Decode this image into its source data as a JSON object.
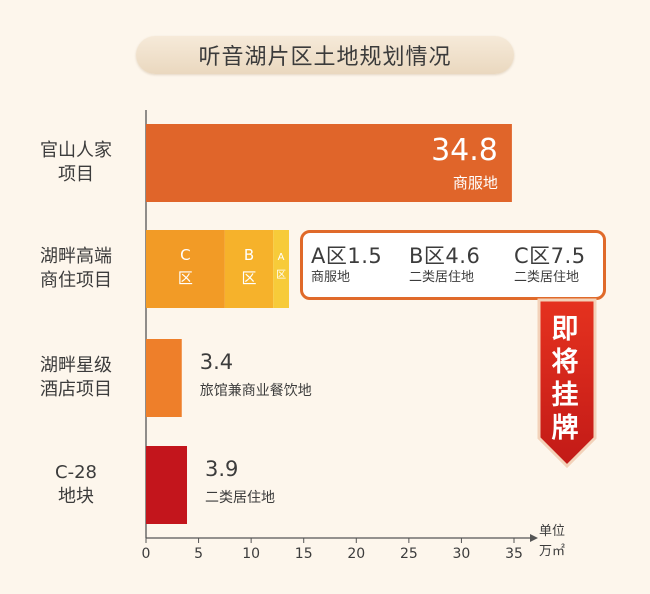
{
  "title": "听音湖片区土地规划情况",
  "unit": "单位\n万㎡",
  "colors": {
    "bar_commercial": "#e0652a",
    "bar_c": "#f29b26",
    "bar_b": "#f6b22b",
    "bar_a": "#f7cb3a",
    "bar_hotel": "#ee7f2a",
    "bar_c28": "#c3151c",
    "callout_border": "#e06a2a",
    "banner": "#d9261c"
  },
  "callout": {
    "items": [
      {
        "value": "A区1.5",
        "label": "商服地"
      },
      {
        "value": "B区4.6",
        "label": "二类居住地"
      },
      {
        "value": "C区7.5",
        "label": "二类居住地"
      }
    ]
  },
  "banner": "即将挂牌",
  "chart_data": {
    "type": "bar",
    "orientation": "horizontal",
    "stacked": true,
    "xlim": [
      0,
      35
    ],
    "xticks": [
      "0",
      "5",
      "10",
      "15",
      "20",
      "25",
      "30",
      "35"
    ],
    "categories": [
      "官山人家\n项目",
      "湖畔高端\n商住项目",
      "湖畔星级\n酒店项目",
      "C-28\n地块"
    ],
    "bars": [
      {
        "segments": [
          {
            "value": 34.8,
            "color_key": "bar_commercial"
          }
        ],
        "value_label": "34.8",
        "sub_label": "商服地",
        "label_position": "inside"
      },
      {
        "segments": [
          {
            "value": 7.5,
            "color_key": "bar_c",
            "label": "C\n区"
          },
          {
            "value": 4.6,
            "color_key": "bar_b",
            "label": "B\n区"
          },
          {
            "value": 1.5,
            "color_key": "bar_a",
            "label": "A\n区"
          }
        ]
      },
      {
        "segments": [
          {
            "value": 3.4,
            "color_key": "bar_hotel"
          }
        ],
        "value_label": "3.4",
        "sub_label": "旅馆兼商业餐饮地",
        "label_position": "outside"
      },
      {
        "segments": [
          {
            "value": 3.9,
            "color_key": "bar_c28"
          }
        ],
        "value_label": "3.9",
        "sub_label": "二类居住地",
        "label_position": "outside"
      }
    ]
  }
}
